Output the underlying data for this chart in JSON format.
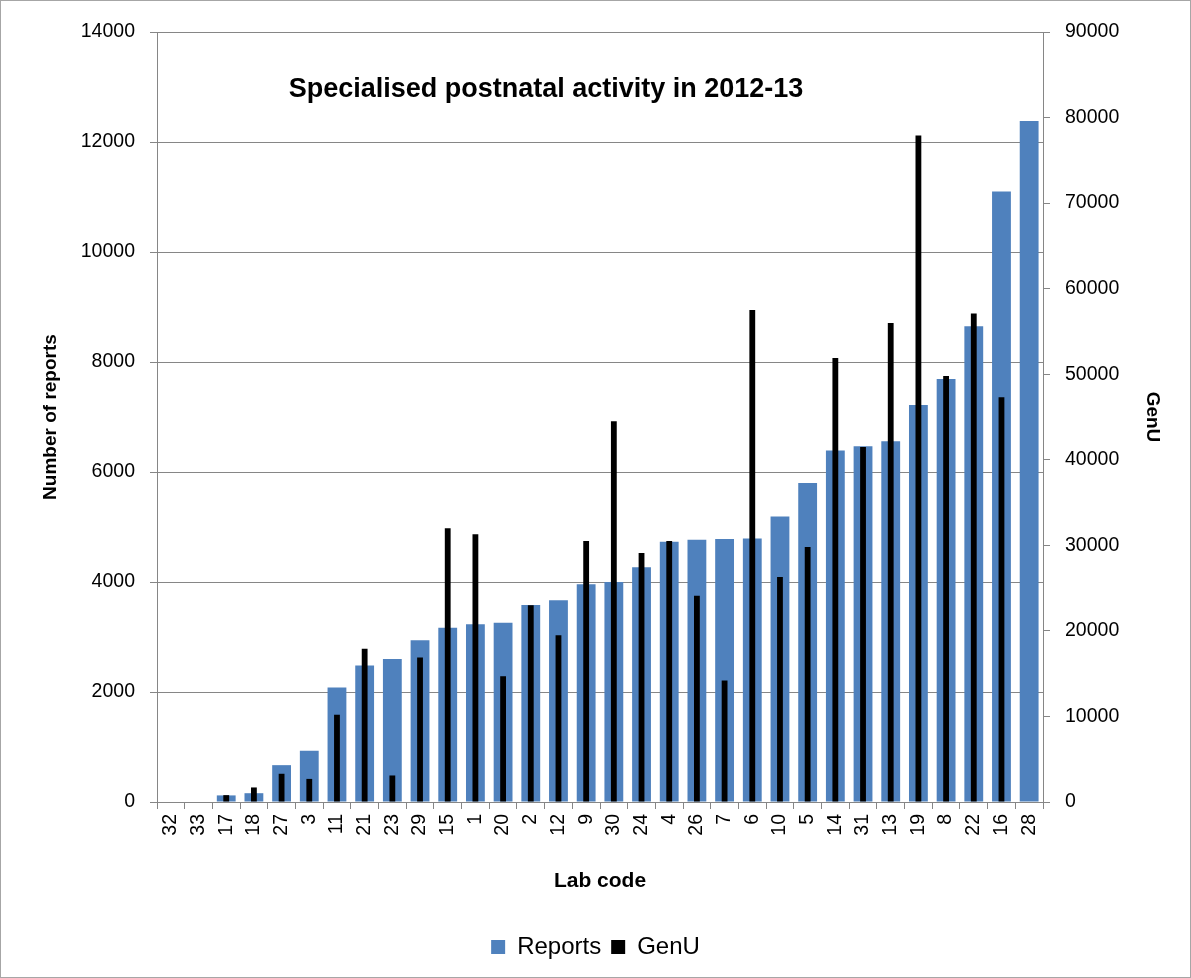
{
  "chart_data": {
    "type": "bar",
    "title": "Specialised postnatal activity in 2012-13",
    "xlabel": "Lab code",
    "ylabel": "Number of reports",
    "y2label": "GenU",
    "categories": [
      "32",
      "33",
      "17",
      "18",
      "27",
      "3",
      "11",
      "21",
      "23",
      "29",
      "15",
      "1",
      "20",
      "2",
      "12",
      "9",
      "30",
      "24",
      "4",
      "26",
      "7",
      "6",
      "10",
      "5",
      "14",
      "31",
      "13",
      "19",
      "8",
      "22",
      "16",
      "28"
    ],
    "series": [
      {
        "name": "Reports",
        "color": "#4f81bd",
        "values": [
          null,
          null,
          120,
          160,
          670,
          930,
          2080,
          2480,
          2600,
          2940,
          3170,
          3230,
          3260,
          3580,
          3670,
          3960,
          4000,
          4270,
          4730,
          4770,
          4780,
          4790,
          5190,
          5800,
          6390,
          6470,
          6560,
          7220,
          7690,
          8650,
          11100,
          12380
        ]
      },
      {
        "name": "GenU",
        "color": "#000000",
        "axis": "y2",
        "values": [
          null,
          null,
          800,
          1700,
          3300,
          2700,
          10200,
          17900,
          3100,
          16900,
          32000,
          31300,
          14700,
          23000,
          19500,
          30500,
          44500,
          29100,
          30500,
          24100,
          14200,
          57500,
          26300,
          29800,
          51900,
          41500,
          56000,
          77900,
          49800,
          57100,
          47300,
          null
        ]
      }
    ],
    "ylim": [
      0,
      14000
    ],
    "yticks": [
      0,
      2000,
      4000,
      6000,
      8000,
      10000,
      12000,
      14000
    ],
    "y2lim": [
      0,
      90000
    ],
    "y2ticks": [
      0,
      10000,
      20000,
      30000,
      40000,
      50000,
      60000,
      70000,
      80000,
      90000
    ],
    "grid": "y",
    "legend": "bottom"
  }
}
